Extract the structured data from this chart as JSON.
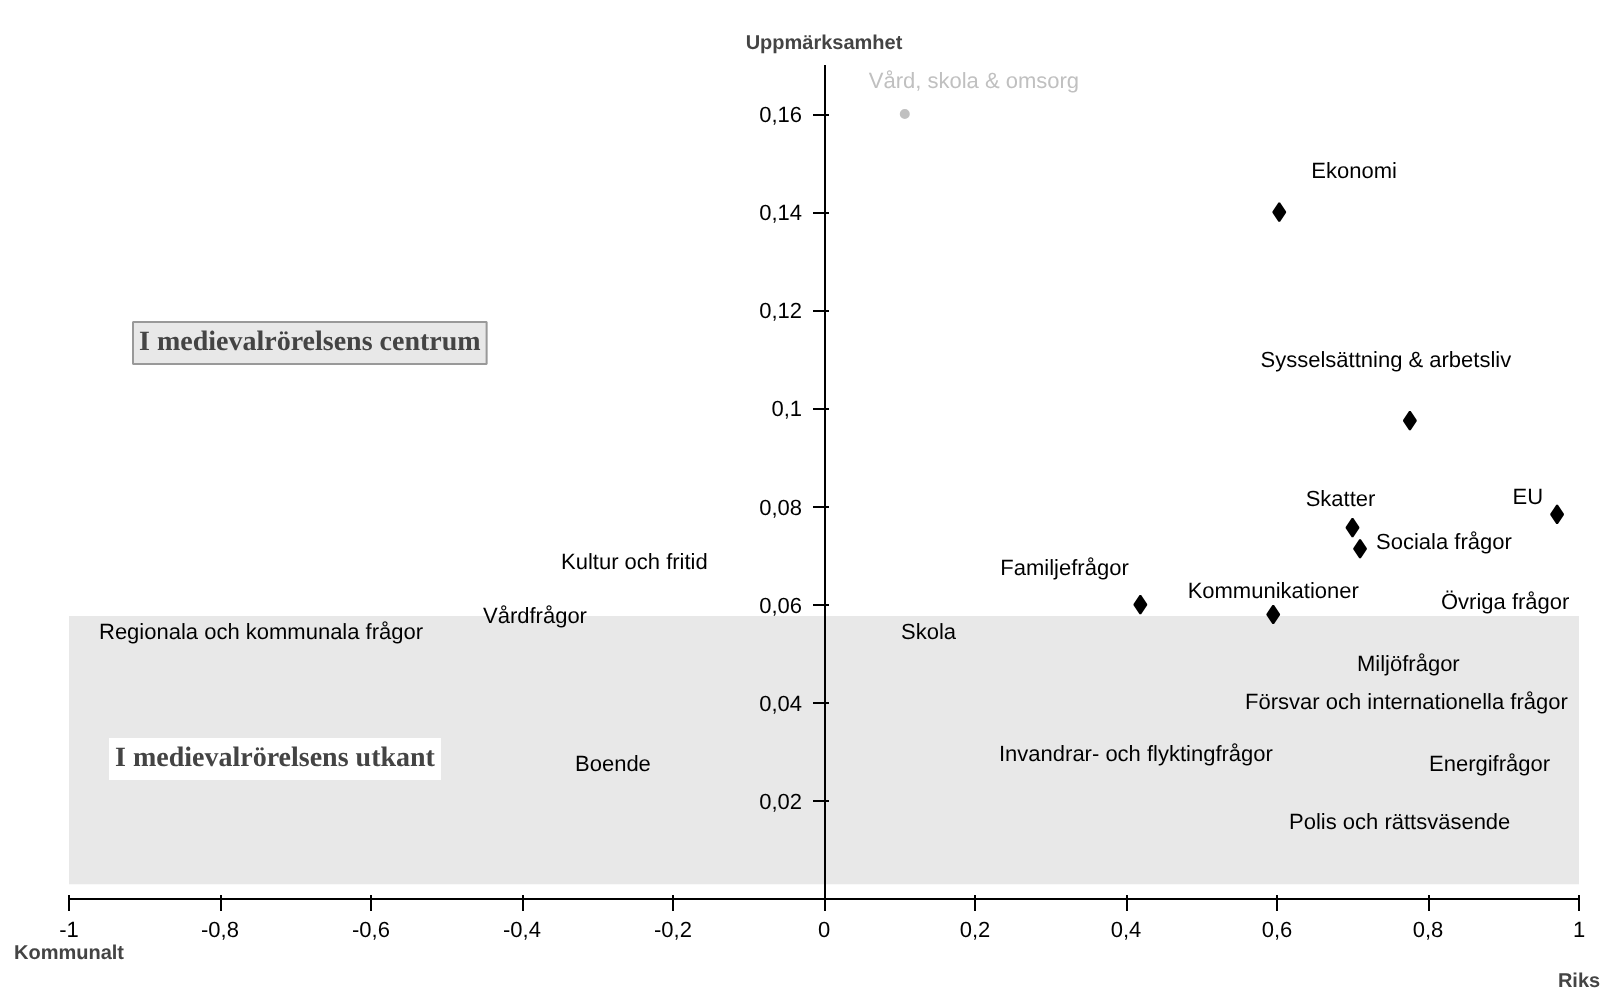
{
  "chart_data": {
    "type": "scatter",
    "ylabel": "Uppmärksamhet",
    "xlabel": "Kommunalt",
    "xlim": [
      -1,
      1
    ],
    "ylim": [
      0,
      0.17
    ],
    "xticks": [
      {
        "value": -1,
        "label": "-1"
      },
      {
        "value": -0.8,
        "label": "-0,8"
      },
      {
        "value": -0.6,
        "label": "-0,6"
      },
      {
        "value": -0.4,
        "label": "-0,4"
      },
      {
        "value": -0.2,
        "label": "-0,2"
      },
      0,
      {
        "value": 0.2,
        "label": "0,2"
      },
      {
        "value": 0.4,
        "label": "0,4"
      },
      {
        "value": 0.6,
        "label": "0,6"
      },
      {
        "value": 0.8,
        "label": "0,8"
      },
      1
    ],
    "yticks": [
      {
        "value": 0.02,
        "label": "0,02"
      },
      {
        "value": 0.04,
        "label": "0,04"
      },
      {
        "value": 0.06,
        "label": "0,06"
      },
      {
        "value": 0.08,
        "label": "0,08"
      },
      {
        "value": 0.1,
        "label": "0,1"
      },
      {
        "value": 0.12,
        "label": "0,12"
      },
      {
        "value": 0.14,
        "label": "0,14"
      },
      {
        "value": 0.16,
        "label": "0,16"
      }
    ],
    "grid": false,
    "marker": "diamond",
    "series": [
      {
        "name": "Vård, skola & omsorg",
        "color": "#c0c0c0",
        "marker": "circle",
        "x": [
          0.107
        ],
        "values": [
          0.16
        ]
      },
      {
        "name": "Ekonomi",
        "color": "#000000",
        "x": [
          0.603
        ],
        "values": [
          0.14
        ]
      },
      {
        "name": "Sysselsättning & arbetsliv",
        "color": "#000000",
        "x": [
          0.776
        ],
        "values": [
          0.0975
        ]
      },
      {
        "name": "Skatter",
        "color": "#000000",
        "x": [
          0.7
        ],
        "values": [
          0.0757
        ]
      },
      {
        "name": "Sociala frågor",
        "color": "#000000",
        "x": [
          0.71
        ],
        "values": [
          0.0714
        ]
      },
      {
        "name": "EU",
        "color": "#000000",
        "x": [
          0.971
        ],
        "values": [
          0.0784
        ]
      },
      {
        "name": "Familjefrågor",
        "color": "#000000",
        "x": [
          0.419
        ],
        "values": [
          0.06
        ]
      },
      {
        "name": "Kommunikationer",
        "color": "#000000",
        "x": [
          0.595
        ],
        "values": [
          0.058
        ]
      }
    ],
    "bands": [
      {
        "axis": "y",
        "from": 0.003,
        "to": 0.0577,
        "color": "#e8e8e8"
      }
    ],
    "annotations": [
      "Kultur och fritid",
      "Regionala och kommunala frågor",
      "Vårdfrågor",
      "Boende",
      "Skola",
      "Invandrar- och flyktingfrågor",
      "Miljöfrågor",
      "Försvar och internationella frågor",
      "Energifrågor",
      "Polis och rättsväsende",
      "Övriga frågor",
      "I medievalrörelsens centrum",
      "I medievalrörelsens utkant",
      "Riks"
    ]
  }
}
